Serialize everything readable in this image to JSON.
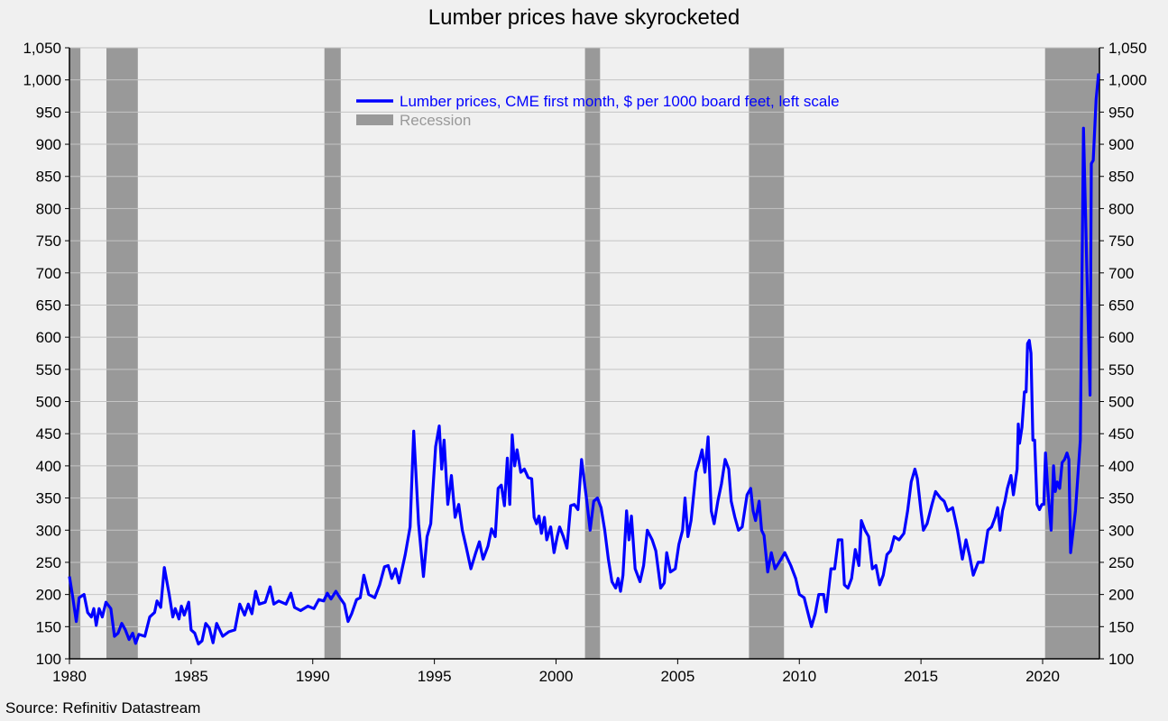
{
  "chart_data": {
    "type": "line",
    "title": "Lumber prices have skyrocketed",
    "source": "Source: Refinitiv Datastream",
    "xlabel": "",
    "ylabel": "",
    "xlim": [
      1980,
      2022.4
    ],
    "ylim": [
      100,
      1050
    ],
    "grid": true,
    "legend_position": "top-center",
    "x_ticks": [
      1980,
      1985,
      1990,
      1995,
      2000,
      2005,
      2010,
      2015,
      2020
    ],
    "x_tick_labels": [
      "1980",
      "1985",
      "1990",
      "1995",
      "2000",
      "2005",
      "2010",
      "2015",
      "2020"
    ],
    "y_ticks": [
      100,
      150,
      200,
      250,
      300,
      350,
      400,
      450,
      500,
      550,
      600,
      650,
      700,
      750,
      800,
      850,
      900,
      950,
      1000,
      1050
    ],
    "y_tick_labels": [
      "100",
      "150",
      "200",
      "250",
      "300",
      "350",
      "400",
      "450",
      "500",
      "550",
      "600",
      "650",
      "700",
      "750",
      "800",
      "850",
      "900",
      "950",
      "1,000",
      "1,050"
    ],
    "colors": {
      "series": "#0000ff",
      "recession": "#999999",
      "grid": "#c4c4c4",
      "background": "#f0f0f0"
    },
    "legend": [
      {
        "label": "Lumber prices, CME first month, $ per 1000 board feet, left scale",
        "type": "line",
        "color": "#0000ff"
      },
      {
        "label": "Recession",
        "type": "band",
        "color": "#999999"
      }
    ],
    "recessions": [
      [
        1980.0,
        1980.45
      ],
      [
        1981.52,
        1982.81
      ],
      [
        1990.48,
        1991.15
      ],
      [
        2001.19,
        2001.81
      ],
      [
        2007.93,
        2009.37
      ],
      [
        2020.1,
        2022.33
      ]
    ],
    "series": [
      {
        "name": "Lumber prices, CME first month, $ per 1000 board feet, left scale",
        "points": [
          [
            1980.0,
            228
          ],
          [
            1980.12,
            200
          ],
          [
            1980.28,
            158
          ],
          [
            1980.4,
            195
          ],
          [
            1980.6,
            200
          ],
          [
            1980.75,
            172
          ],
          [
            1980.9,
            165
          ],
          [
            1981.0,
            178
          ],
          [
            1981.1,
            152
          ],
          [
            1981.22,
            178
          ],
          [
            1981.35,
            165
          ],
          [
            1981.5,
            188
          ],
          [
            1981.7,
            178
          ],
          [
            1981.85,
            135
          ],
          [
            1982.0,
            140
          ],
          [
            1982.15,
            155
          ],
          [
            1982.3,
            145
          ],
          [
            1982.45,
            130
          ],
          [
            1982.6,
            140
          ],
          [
            1982.72,
            124
          ],
          [
            1982.85,
            138
          ],
          [
            1983.1,
            135
          ],
          [
            1983.3,
            165
          ],
          [
            1983.5,
            172
          ],
          [
            1983.6,
            190
          ],
          [
            1983.75,
            180
          ],
          [
            1983.9,
            242
          ],
          [
            1984.1,
            200
          ],
          [
            1984.25,
            165
          ],
          [
            1984.35,
            178
          ],
          [
            1984.5,
            162
          ],
          [
            1984.6,
            182
          ],
          [
            1984.72,
            168
          ],
          [
            1984.9,
            188
          ],
          [
            1985.0,
            145
          ],
          [
            1985.15,
            140
          ],
          [
            1985.3,
            123
          ],
          [
            1985.45,
            128
          ],
          [
            1985.6,
            155
          ],
          [
            1985.75,
            148
          ],
          [
            1985.9,
            125
          ],
          [
            1986.05,
            155
          ],
          [
            1986.3,
            135
          ],
          [
            1986.55,
            142
          ],
          [
            1986.8,
            145
          ],
          [
            1987.0,
            185
          ],
          [
            1987.2,
            168
          ],
          [
            1987.35,
            185
          ],
          [
            1987.5,
            170
          ],
          [
            1987.65,
            205
          ],
          [
            1987.8,
            185
          ],
          [
            1988.05,
            188
          ],
          [
            1988.25,
            212
          ],
          [
            1988.4,
            185
          ],
          [
            1988.6,
            190
          ],
          [
            1988.9,
            185
          ],
          [
            1989.1,
            202
          ],
          [
            1989.25,
            180
          ],
          [
            1989.5,
            175
          ],
          [
            1989.8,
            182
          ],
          [
            1990.05,
            178
          ],
          [
            1990.25,
            192
          ],
          [
            1990.45,
            190
          ],
          [
            1990.6,
            202
          ],
          [
            1990.75,
            193
          ],
          [
            1990.95,
            205
          ],
          [
            1991.15,
            193
          ],
          [
            1991.3,
            185
          ],
          [
            1991.45,
            158
          ],
          [
            1991.6,
            170
          ],
          [
            1991.8,
            192
          ],
          [
            1991.95,
            195
          ],
          [
            1992.1,
            230
          ],
          [
            1992.3,
            200
          ],
          [
            1992.55,
            195
          ],
          [
            1992.75,
            215
          ],
          [
            1992.95,
            243
          ],
          [
            1993.1,
            245
          ],
          [
            1993.25,
            225
          ],
          [
            1993.4,
            240
          ],
          [
            1993.55,
            218
          ],
          [
            1993.8,
            262
          ],
          [
            1994.0,
            305
          ],
          [
            1994.15,
            454
          ],
          [
            1994.35,
            310
          ],
          [
            1994.55,
            228
          ],
          [
            1994.7,
            290
          ],
          [
            1994.85,
            310
          ],
          [
            1995.05,
            430
          ],
          [
            1995.2,
            462
          ],
          [
            1995.3,
            395
          ],
          [
            1995.4,
            440
          ],
          [
            1995.55,
            340
          ],
          [
            1995.7,
            385
          ],
          [
            1995.85,
            320
          ],
          [
            1996.0,
            340
          ],
          [
            1996.15,
            300
          ],
          [
            1996.3,
            275
          ],
          [
            1996.5,
            240
          ],
          [
            1996.7,
            265
          ],
          [
            1996.85,
            282
          ],
          [
            1997.0,
            255
          ],
          [
            1997.2,
            275
          ],
          [
            1997.35,
            302
          ],
          [
            1997.5,
            290
          ],
          [
            1997.62,
            365
          ],
          [
            1997.75,
            370
          ],
          [
            1997.88,
            338
          ],
          [
            1998.0,
            412
          ],
          [
            1998.1,
            340
          ],
          [
            1998.2,
            448
          ],
          [
            1998.3,
            400
          ],
          [
            1998.4,
            425
          ],
          [
            1998.55,
            390
          ],
          [
            1998.7,
            395
          ],
          [
            1998.85,
            382
          ],
          [
            1999.0,
            380
          ],
          [
            1999.1,
            320
          ],
          [
            1999.2,
            310
          ],
          [
            1999.3,
            322
          ],
          [
            1999.4,
            295
          ],
          [
            1999.52,
            320
          ],
          [
            1999.62,
            285
          ],
          [
            1999.78,
            305
          ],
          [
            1999.92,
            265
          ],
          [
            2000.05,
            290
          ],
          [
            2000.15,
            305
          ],
          [
            2000.3,
            290
          ],
          [
            2000.45,
            272
          ],
          [
            2000.6,
            338
          ],
          [
            2000.75,
            340
          ],
          [
            2000.9,
            332
          ],
          [
            2001.05,
            410
          ],
          [
            2001.25,
            350
          ],
          [
            2001.4,
            300
          ],
          [
            2001.55,
            345
          ],
          [
            2001.7,
            350
          ],
          [
            2001.85,
            335
          ],
          [
            2002.0,
            300
          ],
          [
            2002.15,
            255
          ],
          [
            2002.3,
            220
          ],
          [
            2002.45,
            210
          ],
          [
            2002.55,
            225
          ],
          [
            2002.65,
            205
          ],
          [
            2002.75,
            230
          ],
          [
            2002.9,
            330
          ],
          [
            2003.0,
            285
          ],
          [
            2003.1,
            322
          ],
          [
            2003.25,
            240
          ],
          [
            2003.45,
            220
          ],
          [
            2003.6,
            245
          ],
          [
            2003.75,
            300
          ],
          [
            2003.95,
            285
          ],
          [
            2004.1,
            268
          ],
          [
            2004.3,
            210
          ],
          [
            2004.45,
            218
          ],
          [
            2004.55,
            265
          ],
          [
            2004.7,
            235
          ],
          [
            2004.9,
            240
          ],
          [
            2005.05,
            278
          ],
          [
            2005.2,
            300
          ],
          [
            2005.3,
            350
          ],
          [
            2005.42,
            290
          ],
          [
            2005.55,
            315
          ],
          [
            2005.75,
            390
          ],
          [
            2005.9,
            410
          ],
          [
            2006.0,
            425
          ],
          [
            2006.12,
            390
          ],
          [
            2006.25,
            445
          ],
          [
            2006.38,
            330
          ],
          [
            2006.5,
            310
          ],
          [
            2006.65,
            345
          ],
          [
            2006.8,
            372
          ],
          [
            2006.95,
            410
          ],
          [
            2007.1,
            395
          ],
          [
            2007.2,
            345
          ],
          [
            2007.35,
            320
          ],
          [
            2007.5,
            300
          ],
          [
            2007.65,
            305
          ],
          [
            2007.85,
            355
          ],
          [
            2008.0,
            365
          ],
          [
            2008.1,
            330
          ],
          [
            2008.2,
            315
          ],
          [
            2008.35,
            345
          ],
          [
            2008.45,
            300
          ],
          [
            2008.55,
            292
          ],
          [
            2008.7,
            235
          ],
          [
            2008.85,
            265
          ],
          [
            2009.0,
            240
          ],
          [
            2009.25,
            255
          ],
          [
            2009.4,
            265
          ],
          [
            2009.65,
            245
          ],
          [
            2009.85,
            225
          ],
          [
            2010.0,
            200
          ],
          [
            2010.2,
            195
          ],
          [
            2010.35,
            172
          ],
          [
            2010.5,
            150
          ],
          [
            2010.65,
            170
          ],
          [
            2010.8,
            200
          ],
          [
            2011.0,
            200
          ],
          [
            2011.1,
            173
          ],
          [
            2011.3,
            240
          ],
          [
            2011.45,
            240
          ],
          [
            2011.6,
            285
          ],
          [
            2011.75,
            285
          ],
          [
            2011.85,
            215
          ],
          [
            2012.0,
            210
          ],
          [
            2012.15,
            225
          ],
          [
            2012.3,
            270
          ],
          [
            2012.45,
            245
          ],
          [
            2012.55,
            315
          ],
          [
            2012.7,
            300
          ],
          [
            2012.85,
            290
          ],
          [
            2013.0,
            240
          ],
          [
            2013.15,
            245
          ],
          [
            2013.3,
            215
          ],
          [
            2013.45,
            230
          ],
          [
            2013.6,
            262
          ],
          [
            2013.75,
            268
          ],
          [
            2013.9,
            290
          ],
          [
            2014.1,
            285
          ],
          [
            2014.3,
            295
          ],
          [
            2014.45,
            330
          ],
          [
            2014.6,
            375
          ],
          [
            2014.75,
            395
          ],
          [
            2014.85,
            380
          ],
          [
            2015.0,
            330
          ],
          [
            2015.1,
            300
          ],
          [
            2015.25,
            310
          ],
          [
            2015.45,
            340
          ],
          [
            2015.6,
            360
          ],
          [
            2015.8,
            350
          ],
          [
            2015.95,
            345
          ],
          [
            2016.1,
            330
          ],
          [
            2016.3,
            335
          ],
          [
            2016.5,
            300
          ],
          [
            2016.7,
            255
          ],
          [
            2016.85,
            285
          ],
          [
            2017.0,
            260
          ],
          [
            2017.15,
            230
          ],
          [
            2017.35,
            250
          ],
          [
            2017.55,
            250
          ],
          [
            2017.75,
            300
          ],
          [
            2017.9,
            305
          ],
          [
            2018.05,
            320
          ],
          [
            2018.15,
            335
          ],
          [
            2018.25,
            300
          ],
          [
            2018.35,
            330
          ],
          [
            2018.45,
            345
          ],
          [
            2018.55,
            365
          ],
          [
            2018.7,
            385
          ],
          [
            2018.8,
            355
          ],
          [
            2018.95,
            395
          ],
          [
            2019.0,
            465
          ],
          [
            2019.05,
            435
          ],
          [
            2019.15,
            460
          ],
          [
            2019.25,
            515
          ],
          [
            2019.32,
            515
          ],
          [
            2019.38,
            590
          ],
          [
            2019.45,
            595
          ],
          [
            2019.52,
            575
          ],
          [
            2019.6,
            440
          ],
          [
            2019.67,
            440
          ],
          [
            2019.77,
            340
          ],
          [
            2019.87,
            332
          ],
          [
            2019.97,
            340
          ],
          [
            2020.05,
            340
          ],
          [
            2020.12,
            420
          ],
          [
            2020.22,
            360
          ],
          [
            2020.35,
            300
          ],
          [
            2020.45,
            400
          ],
          [
            2020.52,
            360
          ],
          [
            2020.6,
            375
          ],
          [
            2020.7,
            365
          ],
          [
            2020.8,
            405
          ],
          [
            2020.9,
            410
          ],
          [
            2021.0,
            420
          ],
          [
            2021.08,
            410
          ],
          [
            2021.15,
            265
          ],
          [
            2021.35,
            330
          ],
          [
            2021.55,
            440
          ],
          [
            2021.68,
            925
          ],
          [
            2021.82,
            700
          ],
          [
            2021.95,
            510
          ],
          [
            2022.0,
            870
          ],
          [
            2022.08,
            875
          ],
          [
            2022.2,
            970
          ],
          [
            2022.3,
            1010
          ]
        ]
      }
    ]
  }
}
